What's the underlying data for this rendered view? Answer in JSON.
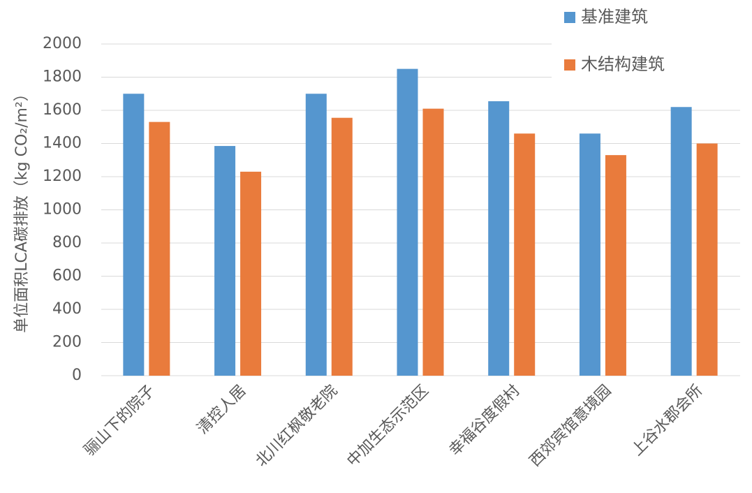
{
  "chart_data": {
    "type": "bar",
    "y_label": "单位面积LCA碳排放（kg CO₂/m²）",
    "categories": [
      "骊山下的院子",
      "清控人居",
      "北川红枫敬老院",
      "中加生态示范区",
      "幸福谷度假村",
      "西郊宾馆意境园",
      "上谷水郡会所"
    ],
    "series": [
      {
        "name": "基准建筑",
        "color": "#5596cf",
        "values": [
          1700,
          1385,
          1700,
          1850,
          1655,
          1460,
          1620
        ]
      },
      {
        "name": "木结构建筑",
        "color": "#e97b3c",
        "values": [
          1530,
          1230,
          1555,
          1610,
          1460,
          1330,
          1400
        ]
      }
    ],
    "ylim": [
      0,
      2000
    ],
    "yticks": [
      0,
      200,
      400,
      600,
      800,
      1000,
      1200,
      1400,
      1600,
      1800,
      2000
    ],
    "grid": true,
    "legend": "top-right"
  }
}
